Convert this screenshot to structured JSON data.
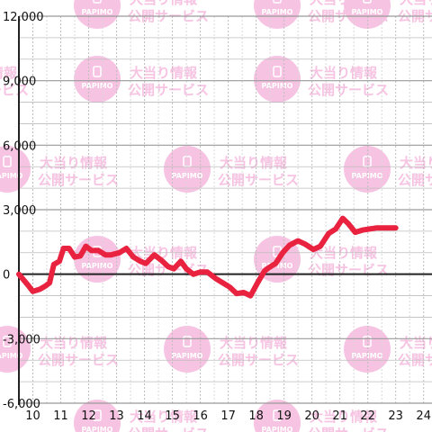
{
  "chart_data": {
    "type": "line",
    "title": "",
    "xlabel": "",
    "ylabel": "",
    "xlim": [
      9.5,
      24.3
    ],
    "ylim": [
      -6000,
      12000
    ],
    "x_ticks": [
      10,
      11,
      12,
      13,
      14,
      15,
      16,
      17,
      18,
      19,
      20,
      21,
      22,
      23,
      24
    ],
    "y_ticks": [
      -6000,
      -3000,
      0,
      3000,
      6000,
      9000,
      12000
    ],
    "x_tick_labels": [
      "10",
      "11",
      "12",
      "13",
      "14",
      "15",
      "16",
      "17",
      "18",
      "19",
      "20",
      "21",
      "22",
      "23",
      "24"
    ],
    "y_tick_labels": [
      "-6,000",
      "-3,000",
      "0",
      "3,000",
      "6,000",
      "9,000",
      "12,000"
    ],
    "grid": true,
    "legend": "none",
    "series": [
      {
        "color": "#e8223f",
        "x": [
          9.5,
          9.85,
          10.0,
          10.25,
          10.45,
          10.6,
          10.75,
          10.95,
          11.1,
          11.3,
          11.5,
          11.7,
          11.9,
          12.1,
          12.35,
          12.6,
          12.8,
          13.1,
          13.35,
          13.6,
          13.85,
          14.05,
          14.35,
          14.6,
          14.85,
          15.05,
          15.3,
          15.5,
          15.75,
          16.0,
          16.25,
          16.55,
          16.8,
          17.05,
          17.3,
          17.55,
          17.8,
          18.05,
          18.3,
          18.45,
          18.7,
          18.95,
          19.2,
          19.5,
          19.75,
          20.05,
          20.3,
          20.6,
          20.85,
          21.1,
          21.3,
          21.55,
          21.8,
          22.05,
          22.3,
          22.6,
          22.9,
          23.0
        ],
        "y": [
          0,
          -550,
          -800,
          -700,
          -550,
          -400,
          450,
          600,
          1200,
          1200,
          800,
          850,
          1300,
          1100,
          1100,
          900,
          900,
          1000,
          1200,
          800,
          600,
          500,
          900,
          650,
          350,
          250,
          600,
          250,
          0,
          100,
          100,
          -200,
          -400,
          -600,
          -900,
          -850,
          -1000,
          -400,
          150,
          300,
          500,
          1000,
          1350,
          1550,
          1400,
          1150,
          1300,
          1900,
          2100,
          2600,
          2350,
          1950,
          2050,
          2100,
          2150,
          2150,
          2150,
          2150
        ]
      }
    ]
  },
  "watermark": {
    "line1": "大当り情報",
    "line2": "公開サービス",
    "logo": "PAPIMO",
    "color": "#f7c3e2"
  }
}
